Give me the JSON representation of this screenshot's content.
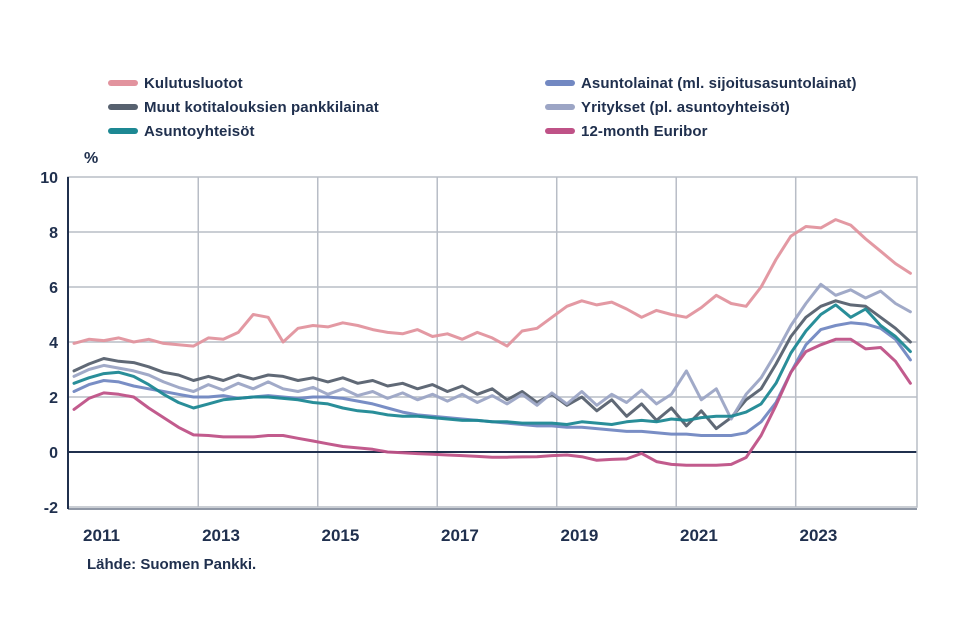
{
  "page": {
    "background": "#FFFFFF"
  },
  "chart_data": {
    "type": "line",
    "title": "",
    "unit": "%",
    "source": "Lähde: Suomen Pankki.",
    "legend_position": "top",
    "grid": true,
    "x_range": [
      2010.82,
      2025.03
    ],
    "ylim": [
      -2,
      10
    ],
    "y_ticks": [
      10,
      8,
      6,
      4,
      2,
      0,
      -2
    ],
    "x_tick_years": [
      2011,
      2013,
      2015,
      2017,
      2019,
      2021,
      2023
    ],
    "x_gridlines": [
      2013,
      2015,
      2017,
      2019,
      2021,
      2023
    ],
    "x_start": 2010.92,
    "x_step": 0.25,
    "colors": {
      "grid": "#B8BDC6",
      "axis": "#20304E",
      "text": "#20304E",
      "zero_line": "#20304E"
    },
    "series": [
      {
        "key": "kulutusluotot",
        "name": "Kulutusluotot",
        "color": "#E2939E",
        "legend_column": "left",
        "values": [
          3.95,
          4.1,
          4.05,
          4.15,
          4.0,
          4.1,
          3.95,
          3.9,
          3.85,
          4.15,
          4.1,
          4.35,
          5.0,
          4.9,
          4.0,
          4.5,
          4.6,
          4.55,
          4.7,
          4.6,
          4.45,
          4.35,
          4.3,
          4.45,
          4.2,
          4.3,
          4.1,
          4.35,
          4.15,
          3.85,
          4.4,
          4.5,
          4.9,
          5.3,
          5.5,
          5.35,
          5.45,
          5.2,
          4.9,
          5.15,
          5.0,
          4.9,
          5.25,
          5.7,
          5.4,
          5.3,
          6.0,
          7.0,
          7.85,
          8.2,
          8.15,
          8.45,
          8.25,
          7.75,
          7.3,
          6.85,
          6.5
        ]
      },
      {
        "key": "asuntolainat",
        "name": "Asuntolainat (ml. sijoitusasuntolainat)",
        "color": "#7288C2",
        "legend_column": "right",
        "values": [
          2.2,
          2.45,
          2.6,
          2.55,
          2.4,
          2.3,
          2.2,
          2.1,
          2.0,
          2.0,
          2.05,
          1.95,
          2.0,
          2.05,
          2.0,
          1.95,
          2.0,
          2.0,
          1.95,
          1.85,
          1.75,
          1.6,
          1.45,
          1.35,
          1.3,
          1.25,
          1.2,
          1.15,
          1.1,
          1.05,
          1.0,
          0.95,
          0.95,
          0.9,
          0.9,
          0.85,
          0.8,
          0.75,
          0.75,
          0.7,
          0.65,
          0.65,
          0.6,
          0.6,
          0.6,
          0.7,
          1.1,
          1.8,
          2.9,
          3.9,
          4.45,
          4.6,
          4.7,
          4.65,
          4.5,
          4.1,
          3.35
        ]
      },
      {
        "key": "muut-kotitalouksien-pankkilainat",
        "name": "Muut kotitalouksien pankkilainat",
        "color": "#57616F",
        "legend_column": "left",
        "values": [
          2.95,
          3.2,
          3.4,
          3.3,
          3.25,
          3.1,
          2.9,
          2.8,
          2.6,
          2.75,
          2.6,
          2.8,
          2.65,
          2.8,
          2.75,
          2.6,
          2.7,
          2.55,
          2.7,
          2.5,
          2.6,
          2.4,
          2.5,
          2.3,
          2.45,
          2.2,
          2.4,
          2.1,
          2.3,
          1.9,
          2.2,
          1.8,
          2.1,
          1.7,
          2.0,
          1.5,
          1.9,
          1.3,
          1.75,
          1.15,
          1.6,
          0.95,
          1.5,
          0.85,
          1.25,
          1.9,
          2.3,
          3.2,
          4.2,
          4.9,
          5.3,
          5.5,
          5.35,
          5.3,
          4.9,
          4.5,
          4.0
        ]
      },
      {
        "key": "yritykset",
        "name": "Yritykset (pl. asuntoyhteisöt)",
        "color": "#9CA5C5",
        "legend_column": "right",
        "values": [
          2.75,
          3.0,
          3.15,
          3.05,
          2.95,
          2.8,
          2.55,
          2.35,
          2.2,
          2.45,
          2.25,
          2.5,
          2.3,
          2.55,
          2.3,
          2.2,
          2.35,
          2.1,
          2.3,
          2.05,
          2.2,
          1.95,
          2.15,
          1.9,
          2.1,
          1.85,
          2.1,
          1.8,
          2.05,
          1.75,
          2.1,
          1.7,
          2.15,
          1.75,
          2.2,
          1.7,
          2.1,
          1.8,
          2.25,
          1.75,
          2.1,
          2.95,
          1.9,
          2.3,
          1.2,
          2.1,
          2.7,
          3.6,
          4.6,
          5.4,
          6.1,
          5.7,
          5.9,
          5.6,
          5.85,
          5.4,
          5.1
        ]
      },
      {
        "key": "asuntoyhteisot",
        "name": "Asuntoyhteisöt",
        "color": "#1D8893",
        "legend_column": "left",
        "values": [
          2.5,
          2.7,
          2.85,
          2.9,
          2.75,
          2.45,
          2.1,
          1.8,
          1.6,
          1.75,
          1.9,
          1.95,
          2.0,
          2.0,
          1.95,
          1.9,
          1.8,
          1.75,
          1.6,
          1.5,
          1.45,
          1.35,
          1.3,
          1.3,
          1.25,
          1.2,
          1.15,
          1.15,
          1.1,
          1.1,
          1.05,
          1.05,
          1.05,
          1.0,
          1.1,
          1.05,
          1.0,
          1.1,
          1.15,
          1.1,
          1.2,
          1.15,
          1.25,
          1.3,
          1.3,
          1.45,
          1.75,
          2.5,
          3.6,
          4.4,
          5.0,
          5.35,
          4.9,
          5.2,
          4.6,
          4.2,
          3.65
        ]
      },
      {
        "key": "euribor-12kk",
        "name": "12-month Euribor",
        "color": "#BF5287",
        "legend_column": "right",
        "values": [
          1.55,
          1.95,
          2.15,
          2.1,
          2.0,
          1.6,
          1.25,
          0.9,
          0.62,
          0.6,
          0.55,
          0.55,
          0.55,
          0.6,
          0.6,
          0.5,
          0.4,
          0.3,
          0.2,
          0.15,
          0.1,
          0.0,
          -0.03,
          -0.06,
          -0.08,
          -0.11,
          -0.13,
          -0.16,
          -0.19,
          -0.19,
          -0.18,
          -0.17,
          -0.13,
          -0.11,
          -0.17,
          -0.3,
          -0.27,
          -0.25,
          -0.05,
          -0.35,
          -0.45,
          -0.48,
          -0.48,
          -0.48,
          -0.45,
          -0.2,
          0.6,
          1.7,
          2.9,
          3.65,
          3.9,
          4.1,
          4.1,
          3.75,
          3.8,
          3.3,
          2.5
        ]
      }
    ]
  }
}
